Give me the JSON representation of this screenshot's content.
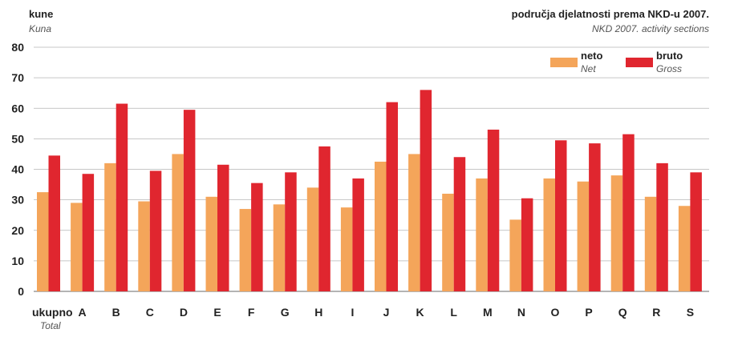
{
  "chart_data": {
    "type": "bar",
    "title": "područja djelatnosti prema NKD-u 2007.",
    "subtitle": "NKD 2007. activity sections",
    "ylabel": "kune",
    "ylabel_en": "Kuna",
    "ylim": [
      0,
      80
    ],
    "yticks": [
      "0",
      "10",
      "20",
      "30",
      "40",
      "50",
      "60",
      "70",
      "80"
    ],
    "grid": true,
    "legend_position": "top-right",
    "categories": [
      "ukupno",
      "A",
      "B",
      "C",
      "D",
      "E",
      "F",
      "G",
      "H",
      "I",
      "J",
      "K",
      "L",
      "M",
      "N",
      "O",
      "P",
      "Q",
      "R",
      "S"
    ],
    "first_category_en": "Total",
    "series": [
      {
        "name": "neto",
        "name_en": "Net",
        "color": "#f4a55a",
        "values": [
          32.5,
          29,
          42,
          29.5,
          45,
          31,
          27,
          28.5,
          34,
          27.5,
          42.5,
          45,
          32,
          37,
          23.5,
          37,
          36,
          38,
          31,
          28
        ]
      },
      {
        "name": "bruto",
        "name_en": "Gross",
        "color": "#e0262f",
        "values": [
          44.5,
          38.5,
          61.5,
          39.5,
          59.5,
          41.5,
          35.5,
          39,
          47.5,
          37,
          62,
          66,
          44,
          53,
          30.5,
          49.5,
          48.5,
          51.5,
          42,
          39
        ]
      }
    ]
  }
}
